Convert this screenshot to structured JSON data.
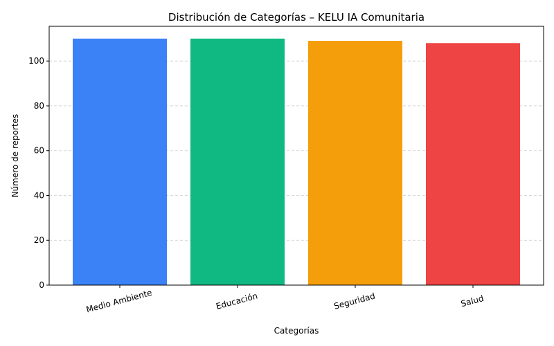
{
  "chart_data": {
    "type": "bar",
    "title": "Distribución de Categorías – KELU IA Comunitaria",
    "xlabel": "Categorías",
    "ylabel": "Número de reportes",
    "categories": [
      "Medio Ambiente",
      "Educación",
      "Seguridad",
      "Salud"
    ],
    "values": [
      110,
      110,
      109,
      108
    ],
    "colors": [
      "#3b82f6",
      "#10b981",
      "#f59e0b",
      "#ef4444"
    ],
    "ylim": [
      0,
      115.5
    ],
    "yticks": [
      0,
      20,
      40,
      60,
      80,
      100
    ],
    "grid": "y-dashed",
    "legend": "none"
  }
}
